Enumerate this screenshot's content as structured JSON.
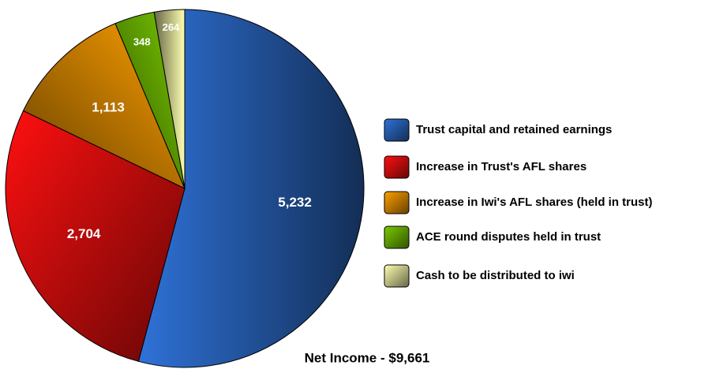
{
  "chart_data": {
    "type": "pie",
    "title": "Net Income - $9,661",
    "categories": [
      "Trust capital and retained earnings",
      "Increase in Trust's AFL shares",
      "Increase in Iwi's AFL shares (held in trust)",
      "ACE round disputes held in trust",
      "Cash to be distributed to iwi"
    ],
    "values": [
      5232,
      2704,
      1113,
      348,
      264
    ],
    "value_labels": [
      "5,232",
      "2,704",
      "1,113",
      "348",
      "264"
    ],
    "colors": [
      "#2f72d8",
      "#ff1010",
      "#ffa000",
      "#7acc00",
      "#ffffb0"
    ],
    "legend": "right"
  }
}
